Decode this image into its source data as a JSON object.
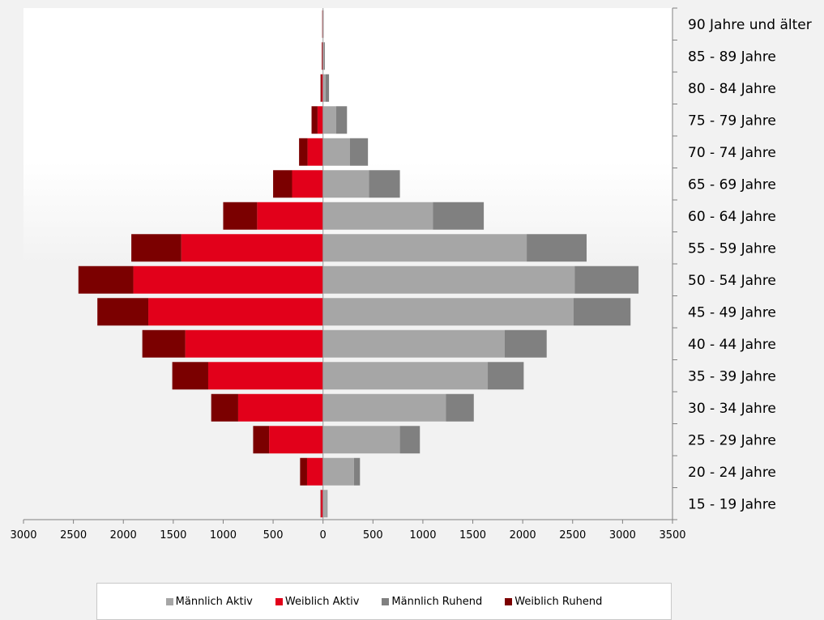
{
  "chart_data": {
    "type": "bar",
    "orientation": "horizontal",
    "layout": "population-pyramid",
    "categories": [
      "15 - 19 Jahre",
      "20 - 24 Jahre",
      "25 - 29 Jahre",
      "30 - 34 Jahre",
      "35 - 39 Jahre",
      "40 - 44 Jahre",
      "45 - 49 Jahre",
      "50 - 54 Jahre",
      "55 - 59 Jahre",
      "60 - 64 Jahre",
      "65 - 69 Jahre",
      "70 - 74 Jahre",
      "75 - 79 Jahre",
      "80 - 84 Jahre",
      "85 - 89 Jahre",
      "90 Jahre und älter"
    ],
    "series": [
      {
        "name": "Männlich Aktiv",
        "side": "right",
        "color": "#a6a6a6",
        "values": [
          40,
          310,
          770,
          1230,
          1650,
          1820,
          2510,
          2520,
          2040,
          1100,
          460,
          270,
          130,
          25,
          8,
          3
        ]
      },
      {
        "name": "Weiblich Aktiv",
        "side": "left",
        "color": "#e2001a",
        "values": [
          20,
          160,
          540,
          850,
          1150,
          1380,
          1750,
          1900,
          1420,
          660,
          310,
          155,
          55,
          15,
          8,
          5
        ]
      },
      {
        "name": "Männlich Ruhend",
        "side": "right",
        "color": "#808080",
        "values": [
          5,
          60,
          200,
          280,
          360,
          420,
          570,
          640,
          600,
          510,
          310,
          180,
          110,
          35,
          10,
          3
        ]
      },
      {
        "name": "Weiblich Ruhend",
        "side": "left",
        "color": "#7b0000",
        "values": [
          5,
          70,
          160,
          270,
          360,
          430,
          510,
          550,
          500,
          340,
          190,
          85,
          60,
          10,
          5,
          3
        ]
      }
    ],
    "xaxis": {
      "ticks": [
        -3000,
        -2500,
        -2000,
        -1500,
        -1000,
        -500,
        0,
        500,
        1000,
        1500,
        2000,
        2500,
        3000,
        3500
      ],
      "tick_labels": [
        "3000",
        "2500",
        "2000",
        "1500",
        "1000",
        "500",
        "0",
        "500",
        "1000",
        "1500",
        "2000",
        "2500",
        "3000",
        "3500"
      ],
      "range": [
        -3000,
        3500
      ]
    },
    "legend_position": "bottom",
    "grid": false,
    "background_color": "#ffffff"
  }
}
